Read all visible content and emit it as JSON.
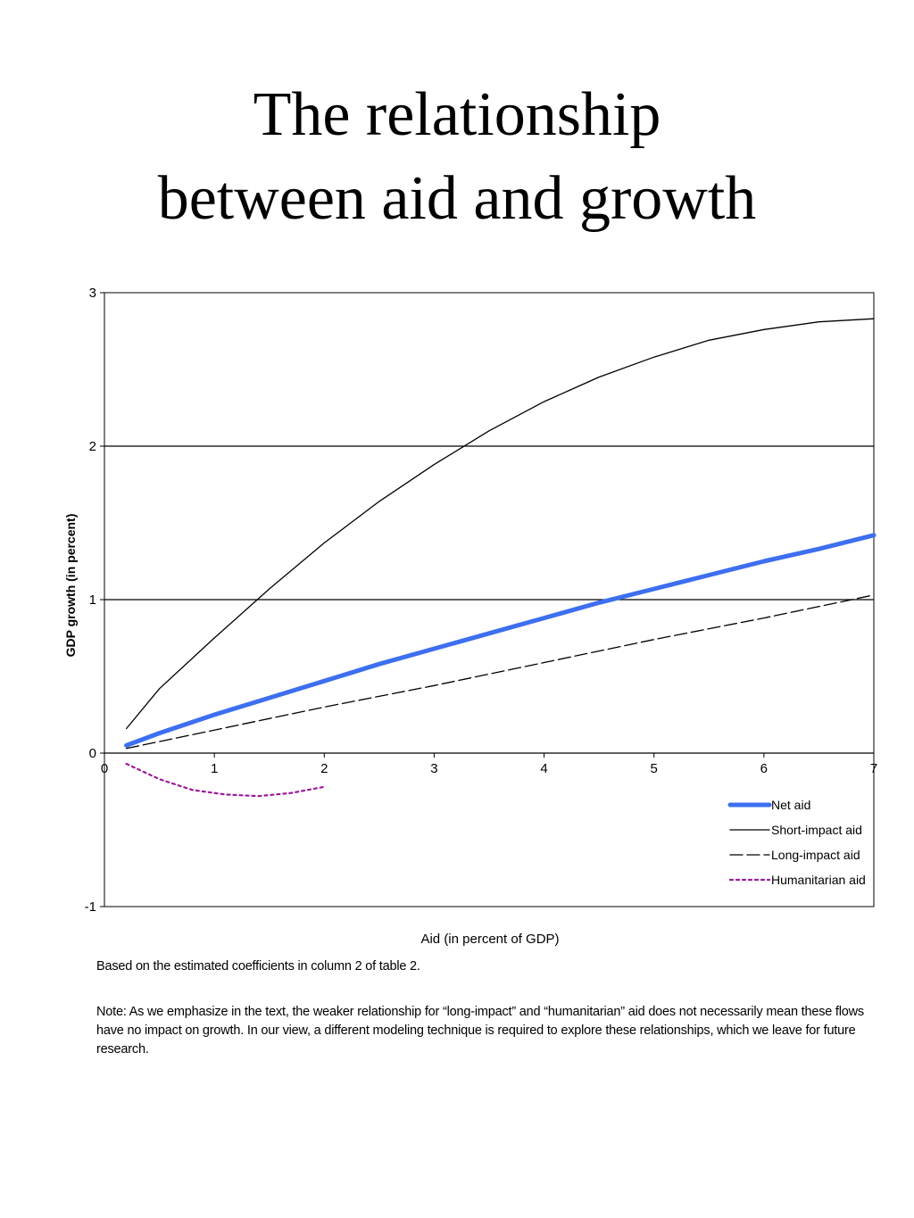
{
  "slide": {
    "title_line1": "The relationship",
    "title_line2": "between aid and growth",
    "source_note": "Based on the estimated coefficients in column 2 of table 2.",
    "footnote": "Note: As we emphasize in the text, the weaker relationship for “long-impact” and “humanitarian” aid does not necessarily mean these flows have no impact on growth.  In our view, a different modeling technique is required to explore these relationships, which we leave for future research."
  },
  "chart_data": {
    "type": "line",
    "title": "",
    "xlabel": "Aid (in percent of GDP)",
    "ylabel": "GDP growth (in percent)",
    "xlim": [
      0,
      7
    ],
    "ylim": [
      -1,
      3
    ],
    "xticks": [
      0,
      1,
      2,
      3,
      4,
      5,
      6,
      7
    ],
    "yticks": [
      -1,
      0,
      1,
      2,
      3
    ],
    "gridlines_y": [
      1,
      2
    ],
    "legend_position": "bottom-right",
    "series": [
      {
        "name": "Net aid",
        "color": "#3d6ff0",
        "style": "solid-thick",
        "x": [
          0.2,
          0.5,
          1,
          1.5,
          2,
          2.5,
          3,
          3.5,
          4,
          4.5,
          5,
          5.5,
          6,
          6.5,
          7
        ],
        "y": [
          0.05,
          0.13,
          0.25,
          0.36,
          0.47,
          0.58,
          0.68,
          0.78,
          0.88,
          0.98,
          1.07,
          1.16,
          1.25,
          1.33,
          1.42
        ]
      },
      {
        "name": "Short-impact aid",
        "color": "#000000",
        "style": "solid",
        "x": [
          0.2,
          0.5,
          1,
          1.5,
          2,
          2.5,
          3,
          3.5,
          4,
          4.5,
          5,
          5.5,
          6,
          6.5,
          7
        ],
        "y": [
          0.16,
          0.42,
          0.75,
          1.07,
          1.37,
          1.64,
          1.88,
          2.1,
          2.29,
          2.45,
          2.58,
          2.69,
          2.76,
          2.81,
          2.83
        ]
      },
      {
        "name": "Long-impact aid",
        "color": "#000000",
        "style": "dashed",
        "x": [
          0.2,
          1,
          2,
          3,
          4,
          5,
          6,
          7
        ],
        "y": [
          0.03,
          0.15,
          0.3,
          0.44,
          0.59,
          0.74,
          0.88,
          1.03
        ]
      },
      {
        "name": "Humanitarian aid",
        "color": "#9b1a9b",
        "style": "dotted",
        "x": [
          0.2,
          0.5,
          0.8,
          1.1,
          1.4,
          1.7,
          2.0
        ],
        "y": [
          -0.07,
          -0.17,
          -0.24,
          -0.27,
          -0.28,
          -0.26,
          -0.22
        ]
      }
    ]
  }
}
